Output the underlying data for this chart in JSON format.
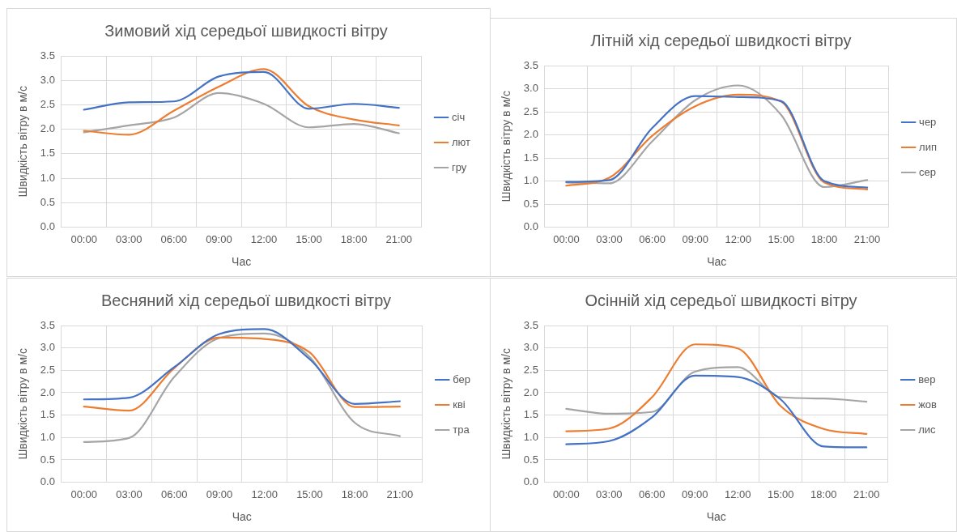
{
  "chart_data": [
    {
      "type": "line",
      "title": "Зимовий хід середьої швидкості вітру",
      "xlabel": "Час",
      "ylabel": "Швидкість вітру в м/с",
      "categories": [
        "00:00",
        "03:00",
        "06:00",
        "09:00",
        "12:00",
        "15:00",
        "18:00",
        "21:00"
      ],
      "ylim": [
        0,
        3.5
      ],
      "yticks": [
        {
          "value": 0,
          "label": "0.0"
        },
        {
          "value": 0.5,
          "label": "0.5"
        },
        {
          "value": 1,
          "label": "1.0"
        },
        {
          "value": 1.5,
          "label": "1.5"
        },
        {
          "value": 2,
          "label": "2.0"
        },
        {
          "value": 2.5,
          "label": "2.5"
        },
        {
          "value": 3,
          "label": "3.0"
        },
        {
          "value": 3.5,
          "label": "3.5"
        }
      ],
      "grid": true,
      "legend": "right",
      "marker": "none",
      "series": [
        {
          "name": "січ",
          "color": "#4472c4",
          "values": [
            2.4,
            2.55,
            2.57,
            3.08,
            3.17,
            2.42,
            2.52,
            2.44
          ]
        },
        {
          "name": "лют",
          "color": "#ed7d31",
          "values": [
            1.97,
            1.89,
            2.38,
            2.87,
            3.23,
            2.47,
            2.2,
            2.08
          ]
        },
        {
          "name": "гру",
          "color": "#a5a5a5",
          "values": [
            1.94,
            2.08,
            2.24,
            2.74,
            2.52,
            2.04,
            2.11,
            1.92
          ]
        }
      ]
    },
    {
      "type": "line",
      "title": "Літній хід середьої швидкості вітру",
      "xlabel": "Час",
      "ylabel": "Швидкість вітру в м/с",
      "categories": [
        "00:00",
        "03:00",
        "06:00",
        "09:00",
        "12:00",
        "15:00",
        "18:00",
        "21:00"
      ],
      "ylim": [
        0,
        3.5
      ],
      "yticks": [
        {
          "value": 0,
          "label": "0.0"
        },
        {
          "value": 0.5,
          "label": "0.5"
        },
        {
          "value": 1,
          "label": "1.0"
        },
        {
          "value": 1.5,
          "label": "1.5"
        },
        {
          "value": 2,
          "label": "2.0"
        },
        {
          "value": 2.5,
          "label": "2.5"
        },
        {
          "value": 3,
          "label": "3.0"
        },
        {
          "value": 3.5,
          "label": "3.5"
        }
      ],
      "grid": true,
      "legend": "right",
      "marker": "none",
      "series": [
        {
          "name": "чер",
          "color": "#4472c4",
          "values": [
            0.98,
            1.02,
            2.15,
            2.84,
            2.82,
            2.73,
            1.0,
            0.86
          ]
        },
        {
          "name": "лип",
          "color": "#ed7d31",
          "values": [
            0.9,
            1.07,
            1.98,
            2.62,
            2.87,
            2.72,
            0.97,
            0.82
          ]
        },
        {
          "name": "сер",
          "color": "#a5a5a5",
          "values": [
            0.97,
            0.95,
            1.86,
            2.75,
            3.07,
            2.43,
            0.87,
            1.02
          ]
        }
      ]
    },
    {
      "type": "line",
      "title": "Весняний хід середьої швидкості вітру",
      "xlabel": "Час",
      "ylabel": "Швидкість вітру в м/с",
      "categories": [
        "00:00",
        "03:00",
        "06:00",
        "09:00",
        "12:00",
        "15:00",
        "18:00",
        "21:00"
      ],
      "ylim": [
        0,
        3.5
      ],
      "yticks": [
        {
          "value": 0,
          "label": "0.0"
        },
        {
          "value": 0.5,
          "label": "0.5"
        },
        {
          "value": 1,
          "label": "1.0"
        },
        {
          "value": 1.5,
          "label": "1.5"
        },
        {
          "value": 2,
          "label": "2.0"
        },
        {
          "value": 2.5,
          "label": "2.5"
        },
        {
          "value": 3,
          "label": "3.0"
        },
        {
          "value": 3.5,
          "label": "3.5"
        }
      ],
      "grid": true,
      "legend": "right",
      "marker": "none",
      "series": [
        {
          "name": "бер",
          "color": "#4472c4",
          "values": [
            1.85,
            1.89,
            2.57,
            3.31,
            3.42,
            2.75,
            1.75,
            1.81
          ]
        },
        {
          "name": "кві",
          "color": "#ed7d31",
          "values": [
            1.69,
            1.6,
            2.55,
            3.23,
            3.2,
            2.9,
            1.68,
            1.69
          ]
        },
        {
          "name": "тра",
          "color": "#a5a5a5",
          "values": [
            0.9,
            0.99,
            2.35,
            3.22,
            3.32,
            2.8,
            1.33,
            1.03
          ]
        }
      ]
    },
    {
      "type": "line",
      "title": "Осінній хід середьої швидкості вітру",
      "xlabel": "Час",
      "ylabel": "Швидкість вітру в м/с",
      "categories": [
        "00:00",
        "03:00",
        "06:00",
        "09:00",
        "12:00",
        "15:00",
        "18:00",
        "21:00"
      ],
      "ylim": [
        0,
        3.5
      ],
      "yticks": [
        {
          "value": 0,
          "label": "0.0"
        },
        {
          "value": 0.5,
          "label": "0.5"
        },
        {
          "value": 1,
          "label": "1.0"
        },
        {
          "value": 1.5,
          "label": "1.5"
        },
        {
          "value": 2,
          "label": "2.0"
        },
        {
          "value": 2.5,
          "label": "2.5"
        },
        {
          "value": 3,
          "label": "3.0"
        },
        {
          "value": 3.5,
          "label": "3.5"
        }
      ],
      "grid": true,
      "legend": "right",
      "marker": "none",
      "series": [
        {
          "name": "вер",
          "color": "#4472c4",
          "values": [
            0.85,
            0.92,
            1.45,
            2.38,
            2.35,
            1.85,
            0.8,
            0.78
          ]
        },
        {
          "name": "жов",
          "color": "#ed7d31",
          "values": [
            1.14,
            1.2,
            1.9,
            3.08,
            2.99,
            1.7,
            1.19,
            1.08
          ]
        },
        {
          "name": "лис",
          "color": "#a5a5a5",
          "values": [
            1.64,
            1.53,
            1.57,
            2.47,
            2.57,
            1.9,
            1.87,
            1.8
          ]
        }
      ]
    }
  ]
}
